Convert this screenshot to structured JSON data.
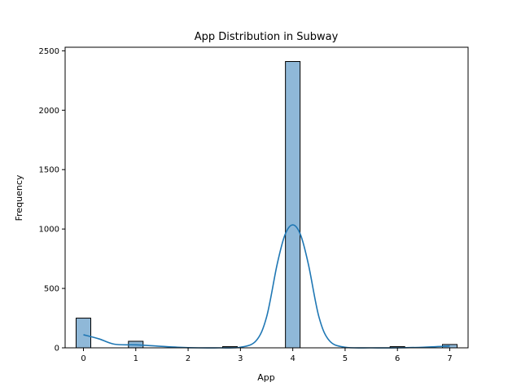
{
  "chart_data": {
    "type": "bar",
    "title": "App Distribution in Subway",
    "xlabel": "App",
    "ylabel": "Frequency",
    "xlim": [
      -0.35,
      7.35
    ],
    "ylim": [
      0,
      2530
    ],
    "xticks": [
      0,
      1,
      2,
      3,
      4,
      5,
      6,
      7
    ],
    "yticks": [
      0,
      500,
      1000,
      1500,
      2000,
      2500
    ],
    "bar_width": 0.28,
    "bars": [
      {
        "x": 0.0,
        "value": 250
      },
      {
        "x": 1.0,
        "value": 55
      },
      {
        "x": 2.8,
        "value": 10
      },
      {
        "x": 4.0,
        "value": 2410
      },
      {
        "x": 6.0,
        "value": 10
      },
      {
        "x": 7.0,
        "value": 28
      }
    ],
    "kde": {
      "name": "KDE",
      "x": [
        0.0,
        0.3,
        0.6,
        1.0,
        1.4,
        1.8,
        2.2,
        2.6,
        3.0,
        3.3,
        3.5,
        3.7,
        3.85,
        4.0,
        4.15,
        4.3,
        4.5,
        4.7,
        5.0,
        5.5,
        6.0,
        6.5,
        7.0
      ],
      "y": [
        110,
        75,
        30,
        25,
        15,
        5,
        0,
        0,
        5,
        60,
        260,
        700,
        950,
        1035,
        950,
        700,
        260,
        60,
        5,
        0,
        0,
        5,
        15
      ]
    },
    "grid": false,
    "colors": {
      "bar_fill": "#8fb8d8",
      "bar_edge": "#000000",
      "kde_line": "#1f77b4"
    }
  }
}
